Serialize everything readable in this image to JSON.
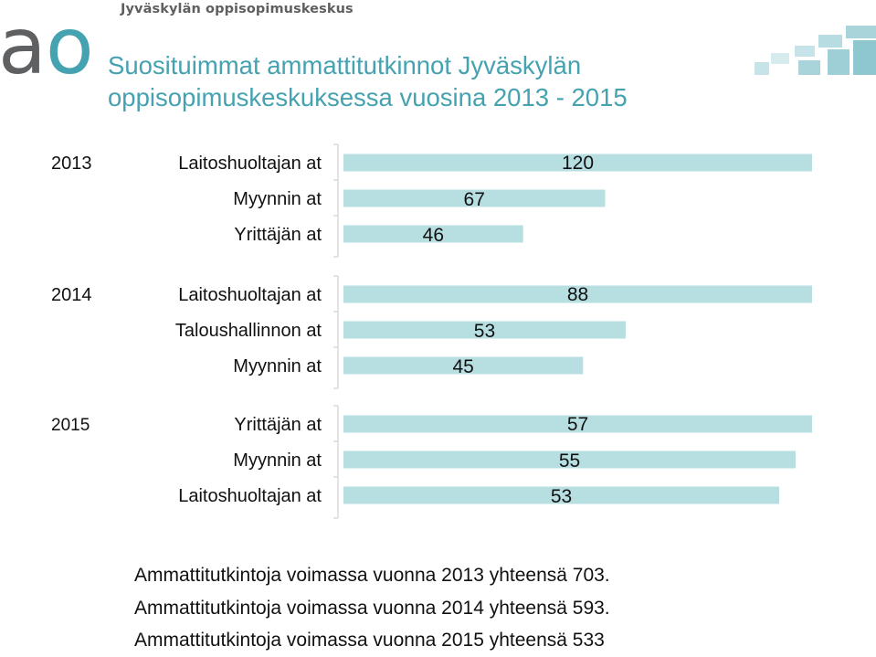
{
  "header": {
    "org_name": "Jyväskylän oppisopimuskeskus",
    "logo_text": {
      "a": "a",
      "o": "o"
    },
    "title_line1": "Suosituimmat ammattitutkinnot Jyväskylän",
    "title_line2": "oppisopimuskeskuksessa vuosina 2013 - 2015"
  },
  "colors": {
    "bar": "#b7dfe2",
    "title": "#45a2b0",
    "logo_a": "#5e6062",
    "logo_o": "#45a2b0",
    "text": "#111111"
  },
  "chart_data": [
    {
      "type": "bar",
      "orientation": "horizontal",
      "year": "2013",
      "categories": [
        "Laitoshuoltajan at",
        "Myynnin at",
        "Yrittäjän at"
      ],
      "values": [
        120,
        67,
        46
      ]
    },
    {
      "type": "bar",
      "orientation": "horizontal",
      "year": "2014",
      "categories": [
        "Laitoshuoltajan at",
        "Taloushallinnon at",
        "Myynnin at"
      ],
      "values": [
        88,
        53,
        45
      ]
    },
    {
      "type": "bar",
      "orientation": "horizontal",
      "year": "2015",
      "categories": [
        "Yrittäjän at",
        "Myynnin at",
        "Laitoshuoltajan at"
      ],
      "values": [
        57,
        55,
        53
      ]
    }
  ],
  "footer": {
    "lines": [
      "Ammattitutkintoja voimassa vuonna 2013 yhteensä 703.",
      "Ammattitutkintoja voimassa vuonna 2014 yhteensä 593.",
      "Ammattitutkintoja voimassa vuonna 2015 yhteensä 533"
    ]
  }
}
